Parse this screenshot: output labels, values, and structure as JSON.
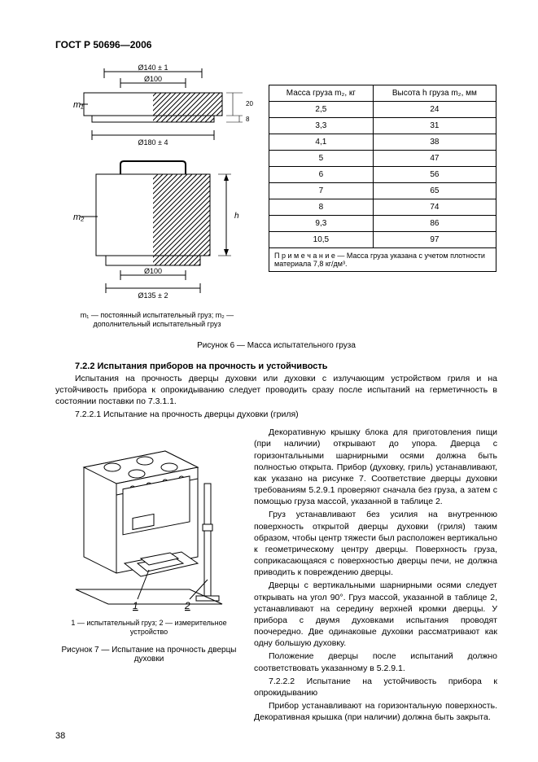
{
  "header": "ГОСТ Р 50696—2006",
  "page_number": "38",
  "figure6": {
    "dims": {
      "d140": "Ø140 ± 1",
      "d100_top": "Ø100",
      "d180": "Ø180 ± 4",
      "d100_bot": "Ø100",
      "d135": "Ø135 ± 2",
      "h_label": "h",
      "offset20": "20",
      "offset8": "8"
    },
    "labels": {
      "m1": "m₁",
      "m2": "m₂"
    },
    "note": "m₁ — постоянный испытательный груз; m₂ — дополнительный испытательный груз",
    "caption": "Рисунок 6 — Масса испытательного груза"
  },
  "table": {
    "header_mass": "Масса груза m₂, кг",
    "header_height": "Высота h груза m₂, мм",
    "rows": [
      [
        "2,5",
        "24"
      ],
      [
        "3,3",
        "31"
      ],
      [
        "4,1",
        "38"
      ],
      [
        "5",
        "47"
      ],
      [
        "6",
        "56"
      ],
      [
        "7",
        "65"
      ],
      [
        "8",
        "74"
      ],
      [
        "9,3",
        "86"
      ],
      [
        "10,5",
        "97"
      ]
    ],
    "note": "П р и м е ч а н и е — Масса груза указана с учетом плотности материала 7,8 кг/дм³."
  },
  "section": {
    "title": "7.2.2  Испытания приборов на прочность и устойчивость",
    "p1": "Испытания на прочность дверцы духовки или духовки с излучающим устройством гриля и на устойчивость прибора к опрокидыванию следует проводить сразу после испытаний на герметичность в состоянии поставки по 7.3.1.1.",
    "p2": "7.2.2.1  Испытание на прочность дверцы духовки (гриля)",
    "r1": "Декоративную крышку блока для приготовления пищи (при наличии) открывают до упора. Дверца с горизонтальными шарнирными осями должна быть полностью открыта. Прибор (духовку, гриль) устанавливают, как указано на рисунке 7. Соответствие дверцы духовки требованиям 5.2.9.1 проверяют сначала без груза, а затем с помощью груза массой, указанной в таблице 2.",
    "r2": "Груз устанавливают без усилия на внутреннюю поверхность открытой дверцы духовки (гриля) таким образом, чтобы центр тяжести был расположен вертикально к геометрическому центру дверцы. Поверхность груза, соприкасающаяся с поверхностью дверцы печи, не должна приводить к повреждению дверцы.",
    "r3": "Дверцы с вертикальными шарнирными осями следует открывать на угол 90°. Груз массой, указанной в таблице 2, устанавливают на середину верхней кромки дверцы. У прибора с двумя духовками испытания проводят поочередно. Две одинаковые духовки рассматривают как одну большую духовку.",
    "r4": "Положение дверцы после испытаний должно соответствовать указанному в 5.2.9.1.",
    "r5": "7.2.2.2  Испытание на устойчивость прибора к опрокидыванию",
    "r6": "Прибор устанавливают на горизонтальную поверхность. Декоративная крышка (при наличии) должна быть закрыта."
  },
  "figure7": {
    "legend": "1 — испытательный груз; 2 — измерительное устройство",
    "caption": "Рисунок 7 — Испытание на прочность дверцы духовки",
    "callout1": "1",
    "callout2": "2"
  },
  "colors": {
    "stroke": "#000000",
    "hatch": "#000000",
    "bg": "#ffffff"
  }
}
